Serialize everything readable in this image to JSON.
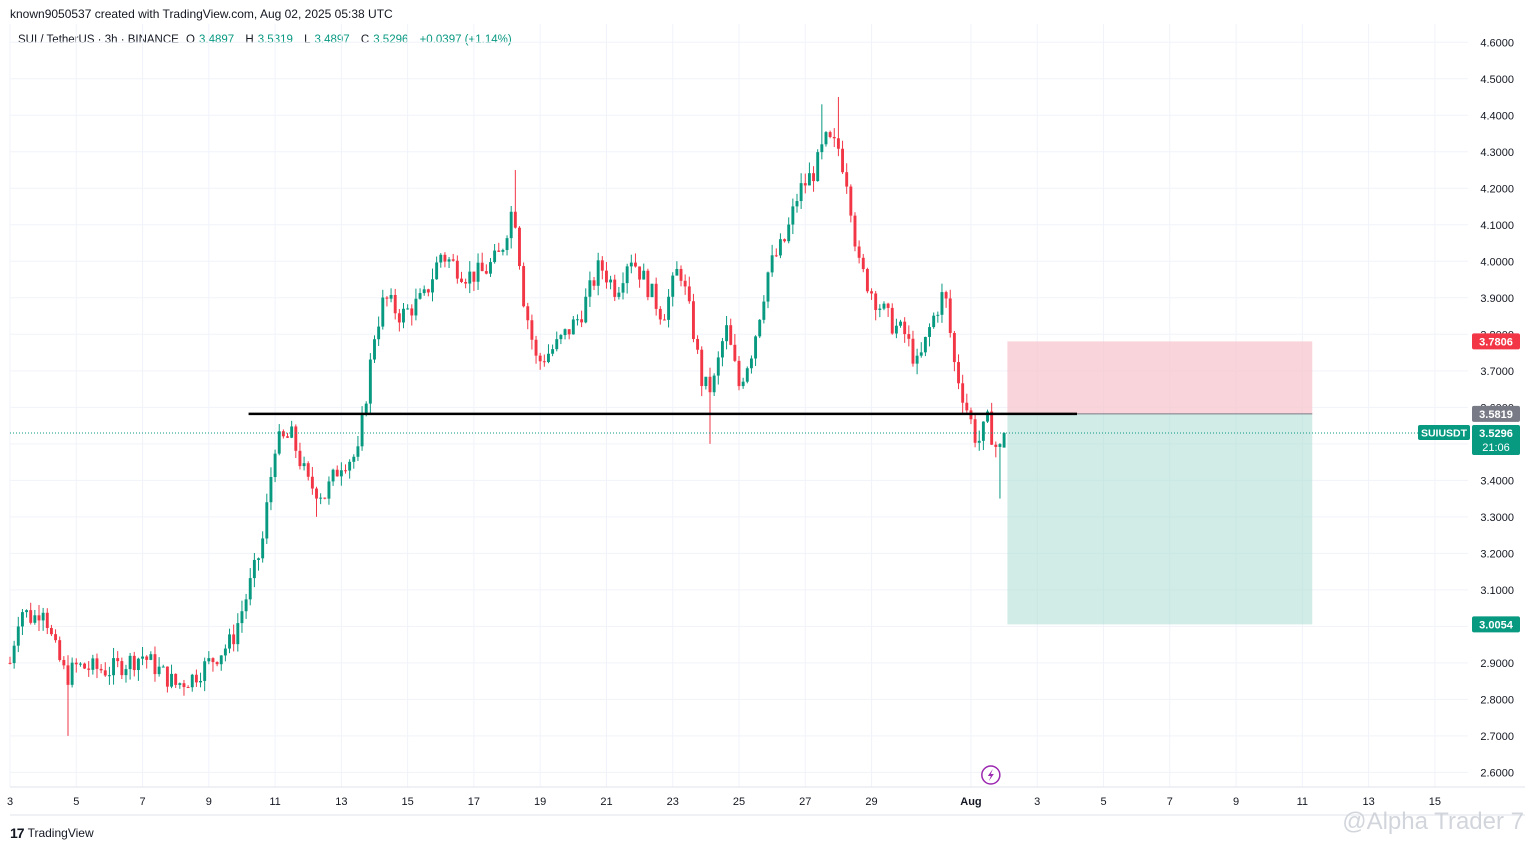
{
  "header": {
    "creator_line": "known9050537 created with TradingView.com, Aug 02, 2025 05:38 UTC",
    "symbol_line": "SUI / TetherUS · 3h · BINANCE",
    "open_label": "O",
    "open_value": "3.4897",
    "high_label": "H",
    "high_value": "3.5319",
    "low_label": "L",
    "low_value": "3.4897",
    "close_label": "C",
    "close_value": "3.5296",
    "change": "+0.0397 (+1.14%)"
  },
  "footer": {
    "brand": "TradingView",
    "brand_mark": "17",
    "watermark": "@Alpha Trader 7"
  },
  "colors": {
    "up": "#089981",
    "down": "#f23645",
    "stop_zone": "#f7c6cd",
    "target_zone": "#b2dfd6",
    "grid": "#f0f3fa",
    "axis_text": "#131722"
  },
  "chart_data": {
    "type": "candlestick",
    "symbol": "SUIUSDT",
    "interval": "3h",
    "ylim": [
      2.56,
      4.65
    ],
    "y_ticks": [
      "4.6000",
      "4.5000",
      "4.4000",
      "4.3000",
      "4.2000",
      "4.1000",
      "4.0000",
      "3.9000",
      "3.8000",
      "3.7000",
      "3.6000",
      "3.5000",
      "3.4000",
      "3.3000",
      "3.2000",
      "3.1000",
      "3.0000",
      "2.9000",
      "2.8000",
      "2.7000",
      "2.6000"
    ],
    "x_ticks": [
      {
        "label": "3",
        "day": 3
      },
      {
        "label": "5",
        "day": 5
      },
      {
        "label": "7",
        "day": 7
      },
      {
        "label": "9",
        "day": 9
      },
      {
        "label": "11",
        "day": 11
      },
      {
        "label": "13",
        "day": 13
      },
      {
        "label": "15",
        "day": 15
      },
      {
        "label": "17",
        "day": 17
      },
      {
        "label": "19",
        "day": 19
      },
      {
        "label": "21",
        "day": 21
      },
      {
        "label": "23",
        "day": 23
      },
      {
        "label": "25",
        "day": 25
      },
      {
        "label": "27",
        "day": 27
      },
      {
        "label": "29",
        "day": 29
      },
      {
        "label": "Aug",
        "day": 32,
        "bold": true
      },
      {
        "label": "3",
        "day": 34
      },
      {
        "label": "5",
        "day": 36
      },
      {
        "label": "7",
        "day": 38
      },
      {
        "label": "9",
        "day": 40
      },
      {
        "label": "11",
        "day": 42
      },
      {
        "label": "13",
        "day": 44
      },
      {
        "label": "15",
        "day": 46
      }
    ],
    "candle_anchors": [
      {
        "day": 3.0,
        "price": 2.9
      },
      {
        "day": 3.3,
        "price": 3.05
      },
      {
        "day": 3.7,
        "price": 3.02
      },
      {
        "day": 4.0,
        "price": 3.06
      },
      {
        "day": 4.3,
        "price": 2.95
      },
      {
        "day": 4.7,
        "price": 2.86
      },
      {
        "day": 5.0,
        "price": 2.89
      },
      {
        "day": 6.0,
        "price": 2.88
      },
      {
        "day": 7.0,
        "price": 2.92
      },
      {
        "day": 8.0,
        "price": 2.84
      },
      {
        "day": 8.5,
        "price": 2.86
      },
      {
        "day": 9.0,
        "price": 2.9
      },
      {
        "day": 9.7,
        "price": 2.96
      },
      {
        "day": 10.2,
        "price": 3.1
      },
      {
        "day": 10.6,
        "price": 3.22
      },
      {
        "day": 11.0,
        "price": 3.5
      },
      {
        "day": 11.5,
        "price": 3.52
      },
      {
        "day": 12.0,
        "price": 3.39
      },
      {
        "day": 12.5,
        "price": 3.36
      },
      {
        "day": 13.0,
        "price": 3.45
      },
      {
        "day": 13.5,
        "price": 3.47
      },
      {
        "day": 14.0,
        "price": 3.8
      },
      {
        "day": 14.3,
        "price": 3.9
      },
      {
        "day": 14.8,
        "price": 3.85
      },
      {
        "day": 15.5,
        "price": 3.9
      },
      {
        "day": 16.0,
        "price": 4.02
      },
      {
        "day": 16.8,
        "price": 3.96
      },
      {
        "day": 17.3,
        "price": 3.97
      },
      {
        "day": 17.8,
        "price": 4.02
      },
      {
        "day": 18.2,
        "price": 4.16
      },
      {
        "day": 18.5,
        "price": 3.9
      },
      {
        "day": 18.9,
        "price": 3.72
      },
      {
        "day": 19.5,
        "price": 3.77
      },
      {
        "day": 20.2,
        "price": 3.85
      },
      {
        "day": 20.8,
        "price": 3.99
      },
      {
        "day": 21.3,
        "price": 3.92
      },
      {
        "day": 21.7,
        "price": 4.02
      },
      {
        "day": 22.2,
        "price": 3.94
      },
      {
        "day": 22.7,
        "price": 3.85
      },
      {
        "day": 23.2,
        "price": 3.99
      },
      {
        "day": 23.6,
        "price": 3.82
      },
      {
        "day": 23.9,
        "price": 3.66
      },
      {
        "day": 24.2,
        "price": 3.65
      },
      {
        "day": 24.6,
        "price": 3.82
      },
      {
        "day": 25.0,
        "price": 3.66
      },
      {
        "day": 25.4,
        "price": 3.76
      },
      {
        "day": 25.9,
        "price": 3.98
      },
      {
        "day": 26.4,
        "price": 4.06
      },
      {
        "day": 26.8,
        "price": 4.19
      },
      {
        "day": 27.3,
        "price": 4.25
      },
      {
        "day": 27.6,
        "price": 4.33
      },
      {
        "day": 28.0,
        "price": 4.31
      },
      {
        "day": 28.3,
        "price": 4.21
      },
      {
        "day": 28.6,
        "price": 3.99
      },
      {
        "day": 29.1,
        "price": 3.9
      },
      {
        "day": 29.6,
        "price": 3.83
      },
      {
        "day": 30.0,
        "price": 3.8
      },
      {
        "day": 30.4,
        "price": 3.71
      },
      {
        "day": 30.8,
        "price": 3.83
      },
      {
        "day": 31.2,
        "price": 3.92
      },
      {
        "day": 31.5,
        "price": 3.72
      },
      {
        "day": 31.8,
        "price": 3.62
      },
      {
        "day": 32.2,
        "price": 3.5
      },
      {
        "day": 32.5,
        "price": 3.56
      },
      {
        "day": 32.8,
        "price": 3.48
      },
      {
        "day": 33.0,
        "price": 3.49
      },
      {
        "day": 33.1,
        "price": 3.53
      }
    ],
    "wick_extremes": [
      {
        "day": 4.8,
        "low": 2.7
      },
      {
        "day": 18.2,
        "high": 4.25
      },
      {
        "day": 27.5,
        "high": 4.43
      },
      {
        "day": 28.0,
        "high": 4.45
      },
      {
        "day": 24.1,
        "low": 3.5
      },
      {
        "day": 32.9,
        "low": 3.35
      },
      {
        "day": 8.3,
        "low": 2.81
      },
      {
        "day": 12.3,
        "low": 3.3
      }
    ],
    "last_candle": {
      "open": 3.4897,
      "high": 3.5319,
      "low": 3.4897,
      "close": 3.5296
    },
    "support_line": {
      "price": 3.5819,
      "from_day": 10.2,
      "to_day": 35.2
    },
    "position": {
      "type": "short",
      "from_day": 33.1,
      "to_day": 42.3,
      "stop": 3.7806,
      "entry": 3.5819,
      "target": 3.0054
    },
    "price_labels": [
      {
        "text": "3.7806",
        "price": 3.7806,
        "color": "#f23645"
      },
      {
        "text": "3.5819",
        "price": 3.5819,
        "color": "#787b86"
      },
      {
        "text": "3.0054",
        "price": 3.0054,
        "color": "#089981"
      }
    ],
    "current_price": {
      "symbol": "SUIUSDT",
      "price": 3.5296,
      "text": "3.5296",
      "countdown": "21:06"
    },
    "event_icon_day": 32.6
  }
}
